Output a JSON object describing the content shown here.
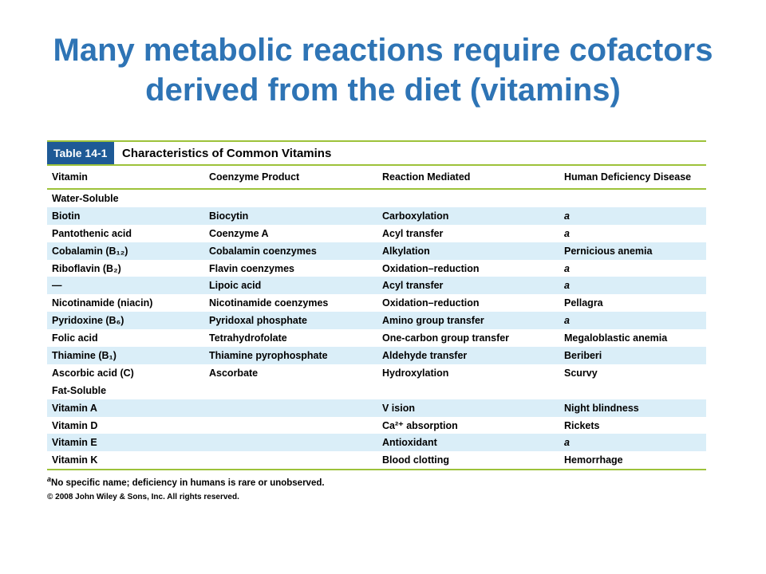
{
  "title": {
    "line1": "Many metabolic reactions require cofactors",
    "line2": "derived from the diet (vitamins)"
  },
  "table": {
    "tag": "Table  14-1",
    "caption": "Characteristics of Common Vitamins",
    "columns": [
      "Vitamin",
      "Coenzyme Product",
      "Reaction Mediated",
      "Human Deficiency Disease"
    ],
    "sections": [
      {
        "label": "Water-Soluble",
        "rows": [
          [
            "Biotin",
            "Biocytin",
            "Carboxylation",
            "a"
          ],
          [
            "Pantothenic acid",
            "Coenzyme A",
            "Acyl transfer",
            "a"
          ],
          [
            "Cobalamin (B₁₂)",
            "Cobalamin coenzymes",
            "Alkylation",
            "Pernicious anemia"
          ],
          [
            "Riboflavin (B₂)",
            "Flavin coenzymes",
            "Oxidation–reduction",
            "a"
          ],
          [
            "—",
            "Lipoic acid",
            "Acyl transfer",
            "a"
          ],
          [
            "Nicotinamide (niacin)",
            "Nicotinamide coenzymes",
            "Oxidation–reduction",
            "Pellagra"
          ],
          [
            "Pyridoxine (B₆)",
            "Pyridoxal phosphate",
            "Amino group transfer",
            "a"
          ],
          [
            "Folic acid",
            "Tetrahydrofolate",
            "One-carbon group transfer",
            "Megaloblastic anemia"
          ],
          [
            "Thiamine (B₁)",
            "Thiamine pyrophosphate",
            "Aldehyde transfer",
            "Beriberi"
          ],
          [
            "Ascorbic acid (C)",
            "Ascorbate",
            "Hydroxylation",
            "Scurvy"
          ]
        ]
      },
      {
        "label": "Fat-Soluble",
        "rows": [
          [
            "Vitamin A",
            "",
            "V ision",
            "Night blindness"
          ],
          [
            "Vitamin D",
            "",
            "Ca²⁺ absorption",
            "Rickets"
          ],
          [
            "Vitamin E",
            "",
            "Antioxidant",
            "a"
          ],
          [
            "Vitamin K",
            "",
            "Blood clotting",
            "Hemorrhage"
          ]
        ]
      }
    ],
    "footnote_marker": "a",
    "footnote": "No specific name; deficiency in humans is rare or unobserved.",
    "copyright": "© 2008 John Wiley & Sons, Inc. All rights reserved."
  },
  "colors": {
    "title": "#2e74b5",
    "tag_bg": "#1e5a96",
    "rule": "#9dc23a",
    "shade": "#daeef8"
  }
}
